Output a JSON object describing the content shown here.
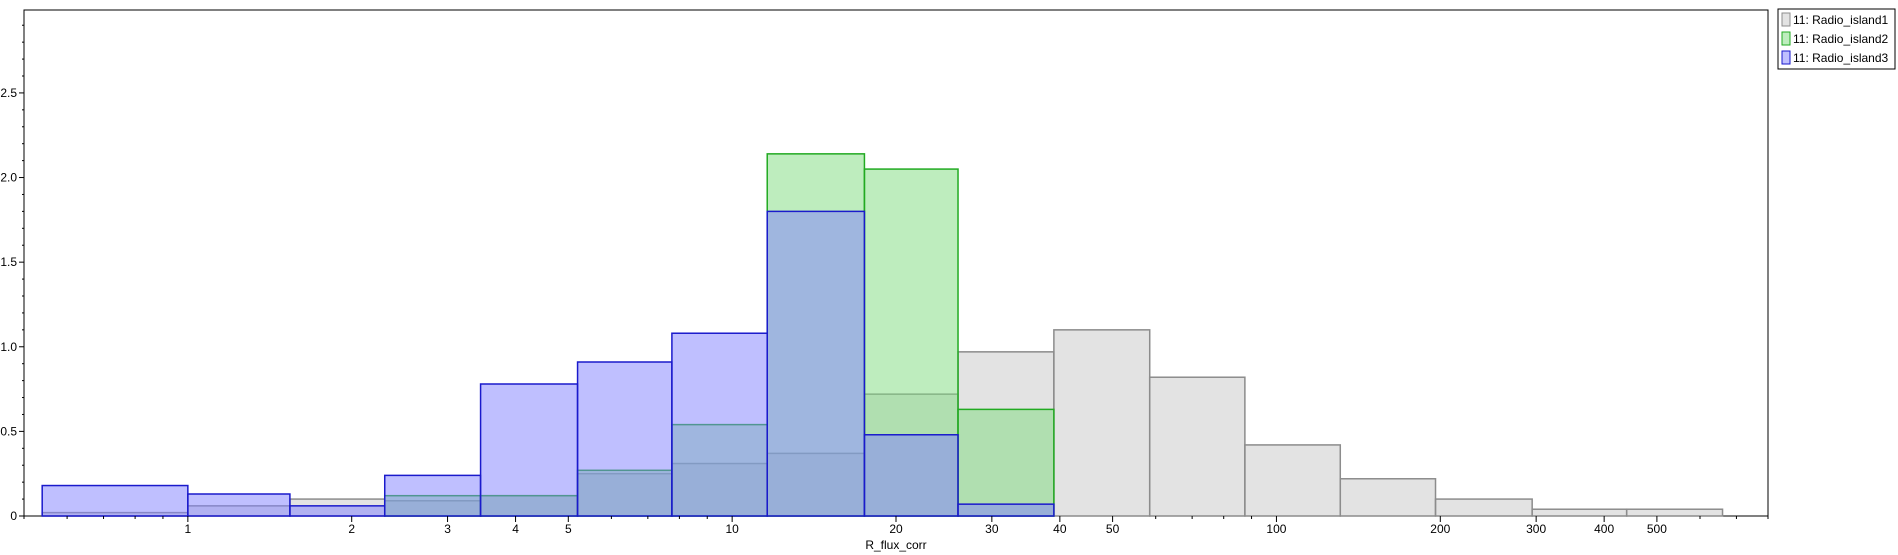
{
  "chart_data": {
    "type": "histogram",
    "title": "",
    "xlabel": "R_flux_corr",
    "ylabel": "",
    "x_scale": "log",
    "xlim": [
      0.5,
      800
    ],
    "ylim": [
      0,
      2.99
    ],
    "x_ticks": [
      1,
      2,
      3,
      4,
      5,
      10,
      20,
      30,
      40,
      50,
      100,
      200,
      300,
      400,
      500
    ],
    "y_ticks": [
      0,
      0.5,
      1.0,
      1.5,
      2.0,
      2.5
    ],
    "y_tick_labels": [
      "0",
      "0.5",
      "1.0",
      "1.5",
      "2.0",
      "2.5"
    ],
    "grid": false,
    "legend_position": "top-right",
    "bin_edges": [
      0.54,
      1.0,
      1.54,
      2.3,
      3.45,
      5.2,
      7.75,
      11.6,
      17.5,
      26.0,
      39.0,
      58.5,
      87.5,
      131,
      196,
      295,
      440,
      660
    ],
    "series": [
      {
        "name": "11: Radio_island1",
        "fill": "#c8c8c8",
        "stroke": "#8c8c8c",
        "values": [
          0.02,
          0.06,
          0.1,
          0.09,
          0.12,
          0.25,
          0.31,
          0.37,
          0.72,
          0.97,
          1.1,
          0.82,
          0.42,
          0.22,
          0.1,
          0.04,
          0.04
        ]
      },
      {
        "name": "11: Radio_island2",
        "fill": "#7edc7e",
        "stroke": "#22aa22",
        "values": [
          0,
          0,
          0,
          0.12,
          0.12,
          0.27,
          0.54,
          2.14,
          2.05,
          0.63,
          0,
          0,
          0,
          0,
          0,
          0,
          0
        ]
      },
      {
        "name": "11: Radio_island3",
        "fill": "#8080ff",
        "stroke": "#1a1acc",
        "values": [
          0.18,
          0.13,
          0.06,
          0.24,
          0.78,
          0.91,
          1.08,
          1.8,
          0.48,
          0.07,
          0,
          0,
          0,
          0,
          0,
          0,
          0
        ]
      }
    ]
  }
}
